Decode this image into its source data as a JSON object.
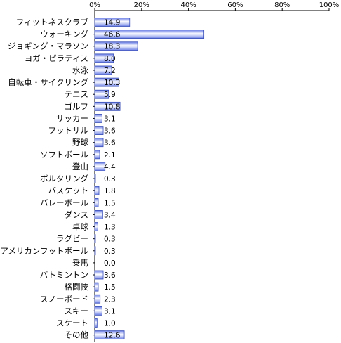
{
  "chart_data": {
    "type": "bar",
    "orientation": "horizontal",
    "title": "",
    "xlabel": "",
    "ylabel": "",
    "xlim": [
      0,
      100
    ],
    "x_ticks": [
      "0%",
      "20%",
      "40%",
      "60%",
      "80%",
      "100%"
    ],
    "categories": [
      "フィットネスクラブ",
      "ウォーキング",
      "ジョギング・マラソン",
      "ヨガ・ピラティス",
      "水泳",
      "自転車・サイクリング",
      "テニス",
      "ゴルフ",
      "サッカー",
      "フットサル",
      "野球",
      "ソフトボール",
      "登山",
      "ボルタリング",
      "バスケット",
      "バレーボール",
      "ダンス",
      "卓球",
      "ラグビー",
      "アメリカンフットボール",
      "乗馬",
      "バトミントン",
      "格闘技",
      "スノーボード",
      "スキー",
      "スケート",
      "その他"
    ],
    "values": [
      14.9,
      46.6,
      18.3,
      8.0,
      7.2,
      10.3,
      5.9,
      10.8,
      3.1,
      3.6,
      3.6,
      2.1,
      4.4,
      0.3,
      1.8,
      1.5,
      3.4,
      1.3,
      0.3,
      0.3,
      0.0,
      3.6,
      1.5,
      2.3,
      3.1,
      1.0,
      12.6
    ],
    "value_labels": [
      "14.9",
      "46.6",
      "18.3",
      "8.0",
      "7.2",
      "10.3",
      "5.9",
      "10.8",
      "3.1",
      "3.6",
      "3.6",
      "2.1",
      "4.4",
      "0.3",
      "1.8",
      "1.5",
      "3.4",
      "1.3",
      "0.3",
      "0.3",
      "0.0",
      "3.6",
      "1.5",
      "2.3",
      "3.1",
      "1.0",
      "12.6"
    ],
    "bar_color": "#6b7fe6",
    "bar_highlight": "#ffffff",
    "bar_edge": "#3a4fb8",
    "grid": false
  }
}
